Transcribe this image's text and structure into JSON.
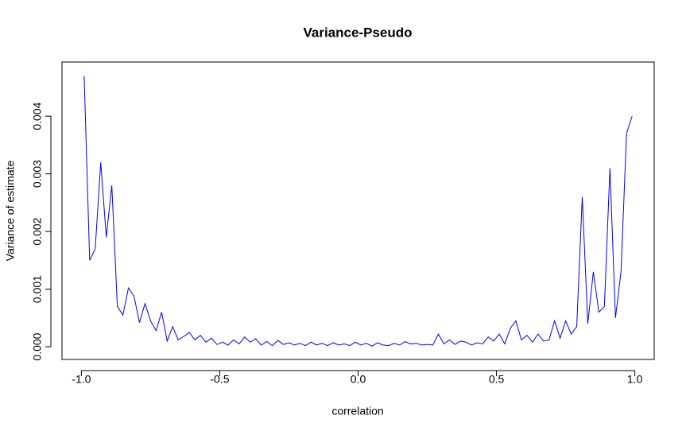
{
  "chart_data": {
    "type": "line",
    "title": "Variance-Pseudo",
    "x_label": "correlation",
    "y_label": "Variance of estimate",
    "color": "#0000ff",
    "x": [
      -0.99,
      -0.97,
      -0.95,
      -0.93,
      -0.91,
      -0.89,
      -0.87,
      -0.85,
      -0.83,
      -0.81,
      -0.79,
      -0.77,
      -0.75,
      -0.73,
      -0.71,
      -0.69,
      -0.67,
      -0.65,
      -0.63,
      -0.61,
      -0.59,
      -0.57,
      -0.55,
      -0.53,
      -0.51,
      -0.49,
      -0.47,
      -0.45,
      -0.43,
      -0.41,
      -0.39,
      -0.37,
      -0.35,
      -0.33,
      -0.31,
      -0.29,
      -0.27,
      -0.25,
      -0.23,
      -0.21,
      -0.19,
      -0.17,
      -0.15,
      -0.13,
      -0.11,
      -0.09,
      -0.07,
      -0.05,
      -0.03,
      -0.01,
      0.01,
      0.03,
      0.05,
      0.07,
      0.09,
      0.11,
      0.13,
      0.15,
      0.17,
      0.19,
      0.21,
      0.23,
      0.25,
      0.27,
      0.29,
      0.31,
      0.33,
      0.35,
      0.37,
      0.39,
      0.41,
      0.43,
      0.45,
      0.47,
      0.49,
      0.51,
      0.53,
      0.55,
      0.57,
      0.59,
      0.61,
      0.63,
      0.65,
      0.67,
      0.69,
      0.71,
      0.73,
      0.75,
      0.77,
      0.79,
      0.81,
      0.83,
      0.85,
      0.87,
      0.89,
      0.91,
      0.93,
      0.95,
      0.97,
      0.99
    ],
    "values": [
      0.0047,
      0.0015,
      0.0017,
      0.0032,
      0.0019,
      0.0028,
      0.0007,
      0.00055,
      0.00102,
      0.00088,
      0.00042,
      0.00075,
      0.00045,
      0.00028,
      0.0006,
      0.0001,
      0.00035,
      0.00012,
      0.00018,
      0.00025,
      0.00012,
      0.0002,
      8e-05,
      0.00015,
      4e-05,
      8e-05,
      3e-05,
      0.00012,
      5e-05,
      0.00017,
      8e-05,
      0.00014,
      3e-05,
      9e-05,
      2e-05,
      0.00011,
      4e-05,
      7e-05,
      3e-05,
      6e-05,
      2e-05,
      8e-05,
      3e-05,
      6e-05,
      2e-05,
      7e-05,
      3e-05,
      5e-05,
      2e-05,
      8e-05,
      3e-05,
      6e-05,
      1e-05,
      7e-05,
      3e-05,
      2e-05,
      6e-05,
      3e-05,
      9e-05,
      5e-05,
      6e-05,
      3e-05,
      4e-05,
      3e-05,
      0.00022,
      5e-05,
      0.00012,
      4e-05,
      0.0001,
      8e-05,
      3e-05,
      7e-05,
      5e-05,
      0.00017,
      0.0001,
      0.00022,
      5e-05,
      0.00032,
      0.00045,
      0.00012,
      0.0002,
      8e-05,
      0.00022,
      0.0001,
      0.00012,
      0.00045,
      0.00015,
      0.00045,
      0.00022,
      0.00035,
      0.0026,
      0.0004,
      0.0013,
      0.0006,
      0.0007,
      0.0031,
      0.0005,
      0.0013,
      0.0037,
      0.004
    ],
    "xlim": [
      -1.07,
      1.07
    ],
    "xticks": [
      {
        "value": -1,
        "label": "-1.0"
      },
      -0.5,
      {
        "value": 0,
        "label": "0.0"
      },
      0.5,
      {
        "value": 1,
        "label": "1.0"
      }
    ],
    "ylim": [
      -0.00022,
      0.00494
    ],
    "yticks": [
      {
        "value": 0,
        "label": "0.000"
      },
      {
        "value": 0.001,
        "label": "0.001"
      },
      {
        "value": 0.002,
        "label": "0.002"
      },
      {
        "value": 0.003,
        "label": "0.003"
      },
      {
        "value": 0.004,
        "label": "0.004"
      }
    ]
  }
}
